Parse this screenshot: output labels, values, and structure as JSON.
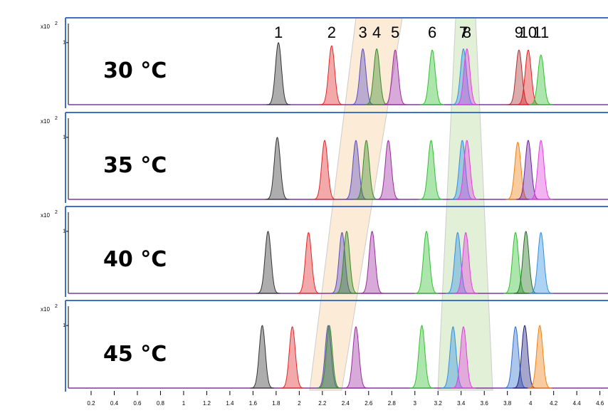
{
  "chart_data": [
    {
      "type": "chromatogram",
      "title": "30 °C",
      "y_scale_label": "x10",
      "y_scale_exponent": "2",
      "xlim": [
        0,
        4.67
      ],
      "ylim": [
        0,
        1.4
      ],
      "yticks": [
        1
      ],
      "peaks": [
        {
          "label": "1",
          "x": 1.82,
          "height": 1.0,
          "color": "#333333"
        },
        {
          "label": "2",
          "x": 2.28,
          "height": 0.95,
          "color": "#e02828"
        },
        {
          "label": "3",
          "x": 2.55,
          "height": 0.9,
          "color": "#5a4cc0"
        },
        {
          "label": "4",
          "x": 2.67,
          "height": 0.9,
          "color": "#3a8a2a"
        },
        {
          "label": "5",
          "x": 2.83,
          "height": 0.88,
          "color": "#9a2aa0"
        },
        {
          "label": "6",
          "x": 3.15,
          "height": 0.88,
          "color": "#30c030"
        },
        {
          "label": "7",
          "x": 3.42,
          "height": 0.9,
          "color": "#3090e0"
        },
        {
          "label": "8",
          "x": 3.45,
          "height": 0.9,
          "color": "#e040e0"
        },
        {
          "label": "9",
          "x": 3.9,
          "height": 0.88,
          "color": "#a83030"
        },
        {
          "label": "10",
          "x": 3.98,
          "height": 0.88,
          "color": "#e02020"
        },
        {
          "label": "11",
          "x": 4.09,
          "height": 0.8,
          "color": "#30c030"
        }
      ]
    },
    {
      "type": "chromatogram",
      "title": "35 °C",
      "y_scale_label": "x10",
      "y_scale_exponent": "2",
      "xlim": [
        0,
        4.67
      ],
      "ylim": [
        0,
        1.4
      ],
      "yticks": [
        1
      ],
      "peaks": [
        {
          "x": 1.81,
          "height": 1.0,
          "color": "#333333"
        },
        {
          "x": 2.22,
          "height": 0.95,
          "color": "#e02828"
        },
        {
          "x": 2.49,
          "height": 0.95,
          "color": "#5a4cc0"
        },
        {
          "x": 2.58,
          "height": 0.95,
          "color": "#3a8a2a"
        },
        {
          "x": 2.77,
          "height": 0.95,
          "color": "#9a2aa0"
        },
        {
          "x": 3.14,
          "height": 0.95,
          "color": "#30c030"
        },
        {
          "x": 3.41,
          "height": 0.95,
          "color": "#3090e0"
        },
        {
          "x": 3.45,
          "height": 0.95,
          "color": "#e040e0"
        },
        {
          "x": 3.89,
          "height": 0.92,
          "color": "#f08010"
        },
        {
          "x": 3.98,
          "height": 0.95,
          "color": "#7020a0"
        },
        {
          "x": 4.09,
          "height": 0.95,
          "color": "#e040e0"
        }
      ]
    },
    {
      "type": "chromatogram",
      "title": "40 °C",
      "y_scale_label": "x10",
      "y_scale_exponent": "2",
      "xlim": [
        0,
        4.67
      ],
      "ylim": [
        0,
        1.4
      ],
      "yticks": [
        1
      ],
      "peaks": [
        {
          "x": 1.73,
          "height": 1.0,
          "color": "#333333"
        },
        {
          "x": 2.08,
          "height": 0.98,
          "color": "#e02828"
        },
        {
          "x": 2.37,
          "height": 0.98,
          "color": "#5a4cc0"
        },
        {
          "x": 2.41,
          "height": 1.0,
          "color": "#3a8a2a"
        },
        {
          "x": 2.63,
          "height": 1.0,
          "color": "#9a2aa0"
        },
        {
          "x": 3.1,
          "height": 1.0,
          "color": "#30c030"
        },
        {
          "x": 3.37,
          "height": 0.98,
          "color": "#3090e0"
        },
        {
          "x": 3.44,
          "height": 0.98,
          "color": "#e040e0"
        },
        {
          "x": 3.87,
          "height": 0.98,
          "color": "#30c030"
        },
        {
          "x": 3.96,
          "height": 1.0,
          "color": "#207020"
        },
        {
          "x": 4.09,
          "height": 0.98,
          "color": "#3090e0"
        }
      ]
    },
    {
      "type": "chromatogram",
      "title": "45 °C",
      "y_scale_label": "x10",
      "y_scale_exponent": "2",
      "xlim": [
        0,
        4.67
      ],
      "ylim": [
        0,
        1.4
      ],
      "yticks": [
        1
      ],
      "xticks": [
        0.2,
        0.4,
        0.6,
        0.8,
        1,
        1.2,
        1.4,
        1.6,
        1.8,
        2,
        2.2,
        2.4,
        2.6,
        2.8,
        3,
        3.2,
        3.4,
        3.6,
        3.8,
        4,
        4.2,
        4.4,
        4.6
      ],
      "peaks": [
        {
          "x": 1.68,
          "height": 1.0,
          "color": "#333333"
        },
        {
          "x": 1.94,
          "height": 0.98,
          "color": "#e02828"
        },
        {
          "x": 2.25,
          "height": 1.0,
          "color": "#5a4cc0"
        },
        {
          "x": 2.26,
          "height": 1.0,
          "color": "#3a8a2a"
        },
        {
          "x": 2.49,
          "height": 0.98,
          "color": "#9a2aa0"
        },
        {
          "x": 3.06,
          "height": 1.0,
          "color": "#30c030"
        },
        {
          "x": 3.33,
          "height": 0.98,
          "color": "#3090e0"
        },
        {
          "x": 3.42,
          "height": 0.98,
          "color": "#e040e0"
        },
        {
          "x": 3.87,
          "height": 0.98,
          "color": "#3070d0"
        },
        {
          "x": 3.95,
          "height": 1.0,
          "color": "#202080"
        },
        {
          "x": 4.08,
          "height": 1.0,
          "color": "#f08010"
        }
      ]
    }
  ]
}
